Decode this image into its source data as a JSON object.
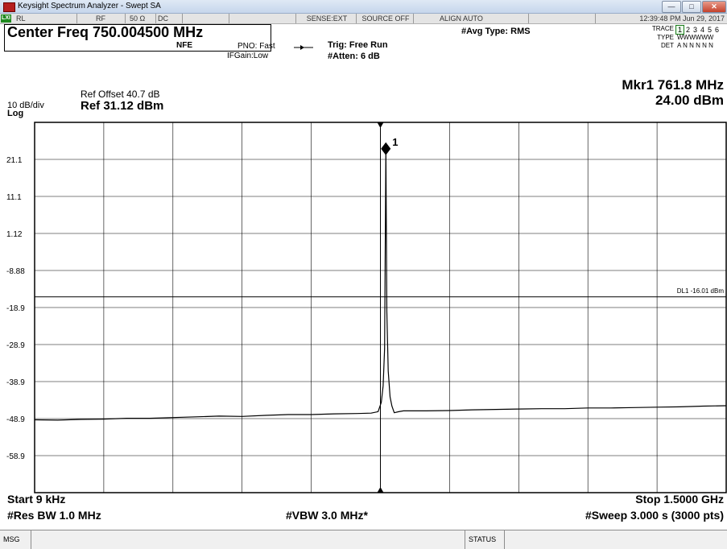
{
  "window": {
    "title": "Keysight Spectrum Analyzer - Swept SA",
    "minimize_glyph": "—",
    "maximize_glyph": "□",
    "close_glyph": "✕"
  },
  "status_row": {
    "ok": "LXI",
    "rl": "RL",
    "rf": "RF",
    "impedance": "50 Ω",
    "coupling": "DC",
    "sense": "SENSE:EXT",
    "source": "SOURCE OFF",
    "align": "ALIGN AUTO",
    "datetime": "12:39:48 PM Jun 29, 2017"
  },
  "header": {
    "center_freq": "Center Freq 750.004500 MHz",
    "nfe": "NFE",
    "pno": "PNO: Fast",
    "ifgain": "IFGain:Low",
    "trig": "Trig: Free Run",
    "atten": "#Atten: 6 dB",
    "avg_type": "#Avg Type: RMS",
    "trace_label": "TRACE",
    "trace_nums": [
      "1",
      "2",
      "3",
      "4",
      "5",
      "6"
    ],
    "type_label": "TYPE",
    "type_value": "WWWWWW",
    "det_label": "DET",
    "det_value": "A N N N N N",
    "ref_offset": "Ref Offset 40.7 dB",
    "scale": "10 dB/div",
    "ref_level": "Ref 31.12 dBm",
    "log": "Log",
    "marker_freq": "Mkr1 761.8 MHz",
    "marker_amp": "24.00 dBm"
  },
  "footer": {
    "start": "Start 9 kHz",
    "stop": "Stop 1.5000 GHz",
    "res_bw": "#Res BW 1.0 MHz",
    "vbw": "#VBW 3.0 MHz*",
    "sweep": "#Sweep  3.000 s (3000 pts)",
    "msg": "MSG",
    "status": "STATUS"
  },
  "chart_data": {
    "type": "line",
    "x_unit": "MHz",
    "y_unit": "dBm",
    "xlim": [
      0.009,
      1500
    ],
    "ylim": [
      -68.88,
      31.12
    ],
    "y_ticks": [
      "21.1",
      "11.1",
      "1.12",
      "-8.88",
      "-18.9",
      "-28.9",
      "-38.9",
      "-48.9",
      "-58.9"
    ],
    "display_line": {
      "value": -16.01,
      "label": "DL1 -16.01 dBm"
    },
    "marker": {
      "id": "1",
      "x": 761.8,
      "y": 24.0
    },
    "grid": true,
    "series": [
      {
        "color": "#000000",
        "x": [
          0.009,
          50,
          100,
          150,
          200,
          250,
          300,
          350,
          400,
          450,
          500,
          550,
          600,
          650,
          700,
          730,
          745,
          752,
          756,
          759,
          761.8,
          764,
          767,
          771,
          775,
          780,
          790,
          800,
          850,
          900,
          950,
          1000,
          1050,
          1100,
          1150,
          1200,
          1250,
          1300,
          1350,
          1400,
          1450,
          1500
        ],
        "y": [
          -49.2,
          -49.3,
          -49.1,
          -49.0,
          -48.8,
          -48.8,
          -48.6,
          -48.4,
          -48.2,
          -48.3,
          -48.0,
          -47.8,
          -47.8,
          -47.6,
          -47.5,
          -47.4,
          -47.0,
          -44.5,
          -40.0,
          -30.0,
          24.0,
          -20.0,
          -36.0,
          -43.0,
          -45.5,
          -47.3,
          -47.0,
          -46.8,
          -46.8,
          -46.7,
          -46.5,
          -46.4,
          -46.3,
          -46.2,
          -46.2,
          -46.0,
          -46.0,
          -45.9,
          -45.8,
          -45.7,
          -45.5,
          -45.4
        ]
      }
    ]
  }
}
